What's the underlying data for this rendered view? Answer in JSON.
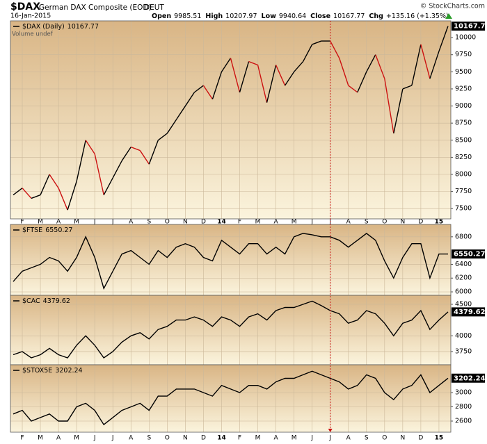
{
  "header": {
    "symbol": "$DAX",
    "name": "German DAX Composite (EOD)",
    "exchange": "DEUT",
    "date": "16-Jan-2015",
    "stats": [
      {
        "label": "Open",
        "value": 9985.51
      },
      {
        "label": "High",
        "value": 10207.97
      },
      {
        "label": "Low",
        "value": 9940.64
      },
      {
        "label": "Close",
        "value": 10167.77
      },
      {
        "label": "Chg",
        "value": "+135.16 (+1.35%)"
      }
    ],
    "credit": "© StockCharts.com"
  },
  "marker_index": 35,
  "chart_data": [
    {
      "type": "line",
      "subtitle": "Volume undef",
      "categories": [
        null,
        "F",
        null,
        "M",
        null,
        "A",
        null,
        "M",
        null,
        "J",
        null,
        "J",
        null,
        "A",
        null,
        "S",
        null,
        "O",
        null,
        "N",
        null,
        "D",
        null,
        "14",
        null,
        "F",
        null,
        "M",
        null,
        "A",
        null,
        "M",
        null,
        "J",
        null,
        "J",
        null,
        "A",
        null,
        "S",
        null,
        "O",
        null,
        "N",
        null,
        "D",
        null,
        "15",
        null
      ],
      "series": [
        {
          "name": "$DAX (Daily)",
          "color": "#000000",
          "down_color": "#cc1111",
          "values": [
            7700,
            7800,
            7650,
            7700,
            8000,
            7800,
            7480,
            7900,
            8500,
            8300,
            7700,
            7950,
            8200,
            8400,
            8350,
            8150,
            8500,
            8600,
            8800,
            9000,
            9200,
            9300,
            9100,
            9500,
            9700,
            9200,
            9650,
            9600,
            9050,
            9600,
            9300,
            9500,
            9650,
            9900,
            9950,
            9950,
            9700,
            9300,
            9200,
            9500,
            9750,
            9400,
            8600,
            9250,
            9300,
            9900,
            9400,
            9800,
            10167.77
          ]
        }
      ],
      "ylim": [
        7350,
        10245
      ],
      "yticks": [
        7500,
        7750,
        8000,
        8250,
        8500,
        8750,
        9000,
        9250,
        9500,
        9750,
        10000
      ],
      "grid": true
    },
    {
      "type": "line",
      "series": [
        {
          "name": "$FTSE",
          "color": "#000000",
          "values": [
            6150,
            6300,
            6350,
            6400,
            6500,
            6450,
            6300,
            6500,
            6800,
            6500,
            6050,
            6300,
            6550,
            6600,
            6500,
            6400,
            6600,
            6500,
            6650,
            6700,
            6650,
            6500,
            6450,
            6750,
            6650,
            6550,
            6700,
            6700,
            6550,
            6650,
            6550,
            6800,
            6850,
            6830,
            6800,
            6800,
            6750,
            6650,
            6750,
            6850,
            6750,
            6450,
            6200,
            6500,
            6700,
            6700,
            6200,
            6550,
            6550.27
          ]
        }
      ],
      "ylim": [
        5950,
        6980
      ],
      "yticks": [
        6000,
        6200,
        6400,
        6800
      ],
      "grid": true
    },
    {
      "type": "line",
      "series": [
        {
          "name": "$CAC",
          "color": "#000000",
          "values": [
            3700,
            3750,
            3650,
            3700,
            3800,
            3700,
            3650,
            3850,
            4000,
            3850,
            3650,
            3750,
            3900,
            4000,
            4050,
            3950,
            4100,
            4150,
            4250,
            4250,
            4300,
            4250,
            4150,
            4300,
            4250,
            4150,
            4300,
            4350,
            4250,
            4400,
            4450,
            4450,
            4500,
            4550,
            4480,
            4400,
            4350,
            4200,
            4250,
            4400,
            4350,
            4200,
            4000,
            4200,
            4250,
            4400,
            4100,
            4250,
            4379.62
          ]
        }
      ],
      "ylim": [
        3540,
        4643
      ],
      "yticks": [
        3750,
        4000,
        4500
      ],
      "grid": true
    },
    {
      "type": "line",
      "categories": [
        null,
        "F",
        null,
        "M",
        null,
        "A",
        null,
        "M",
        null,
        "J",
        null,
        "J",
        null,
        "A",
        null,
        "S",
        null,
        "O",
        null,
        "N",
        null,
        "D",
        null,
        "14",
        null,
        "F",
        null,
        "M",
        null,
        "A",
        null,
        "M",
        null,
        "J",
        null,
        "J",
        null,
        "A",
        null,
        "S",
        null,
        "O",
        null,
        "N",
        null,
        "D",
        null,
        "15",
        null
      ],
      "series": [
        {
          "name": "$STOX5E",
          "color": "#000000",
          "values": [
            2700,
            2750,
            2600,
            2650,
            2700,
            2600,
            2600,
            2800,
            2850,
            2750,
            2550,
            2650,
            2750,
            2800,
            2850,
            2750,
            2950,
            2950,
            3050,
            3050,
            3050,
            3000,
            2950,
            3100,
            3050,
            3000,
            3100,
            3100,
            3050,
            3150,
            3200,
            3200,
            3250,
            3300,
            3250,
            3200,
            3150,
            3050,
            3100,
            3250,
            3200,
            3000,
            2900,
            3050,
            3100,
            3250,
            3000,
            3100,
            3202.24
          ]
        }
      ],
      "ylim": [
        2444,
        3390
      ],
      "yticks": [
        2600,
        2800,
        3000
      ],
      "grid": true
    }
  ]
}
